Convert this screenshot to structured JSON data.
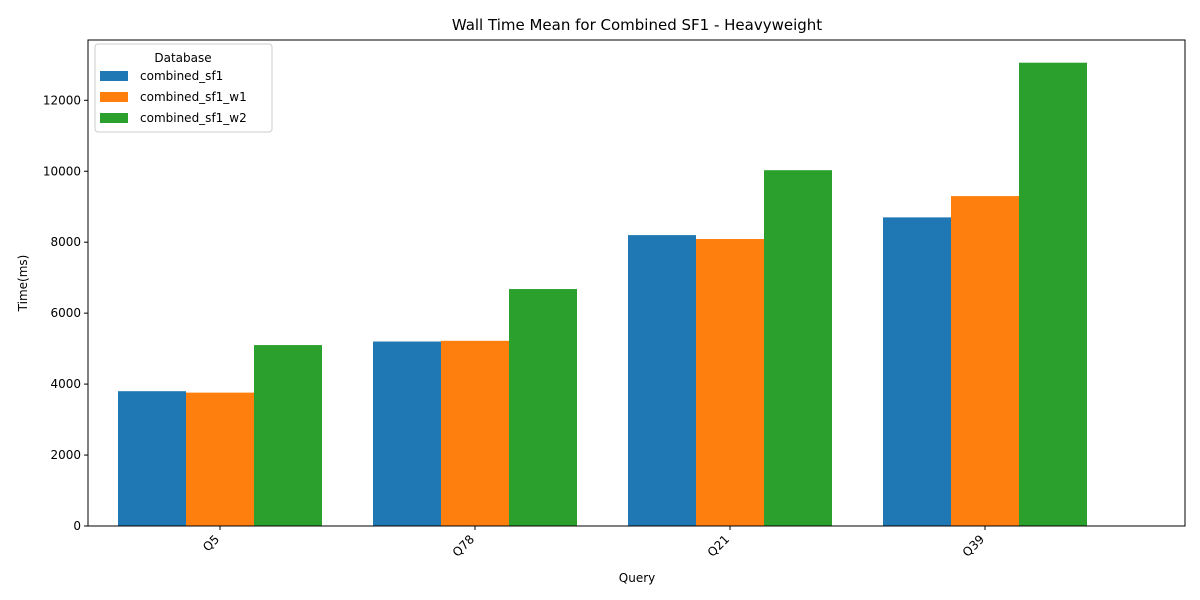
{
  "chart_data": {
    "type": "bar",
    "title": "Wall Time Mean for Combined SF1 - Heavyweight",
    "xlabel": "Query",
    "ylabel": "Time(ms)",
    "categories": [
      "Q5",
      "Q78",
      "Q21",
      "Q39"
    ],
    "series": [
      {
        "name": "combined_sf1",
        "color": "#1f77b4",
        "values": [
          3800,
          5200,
          8200,
          8700
        ]
      },
      {
        "name": "combined_sf1_w1",
        "color": "#ff7f0e",
        "values": [
          3760,
          5220,
          8090,
          9300
        ]
      },
      {
        "name": "combined_sf1_w2",
        "color": "#2ca02c",
        "values": [
          5100,
          6680,
          10030,
          13060
        ]
      }
    ],
    "ylim": [
      0,
      13700
    ],
    "yticks": [
      0,
      2000,
      4000,
      6000,
      8000,
      10000,
      12000
    ],
    "legend": {
      "title": "Database",
      "position": "top-left"
    },
    "grid": false
  }
}
